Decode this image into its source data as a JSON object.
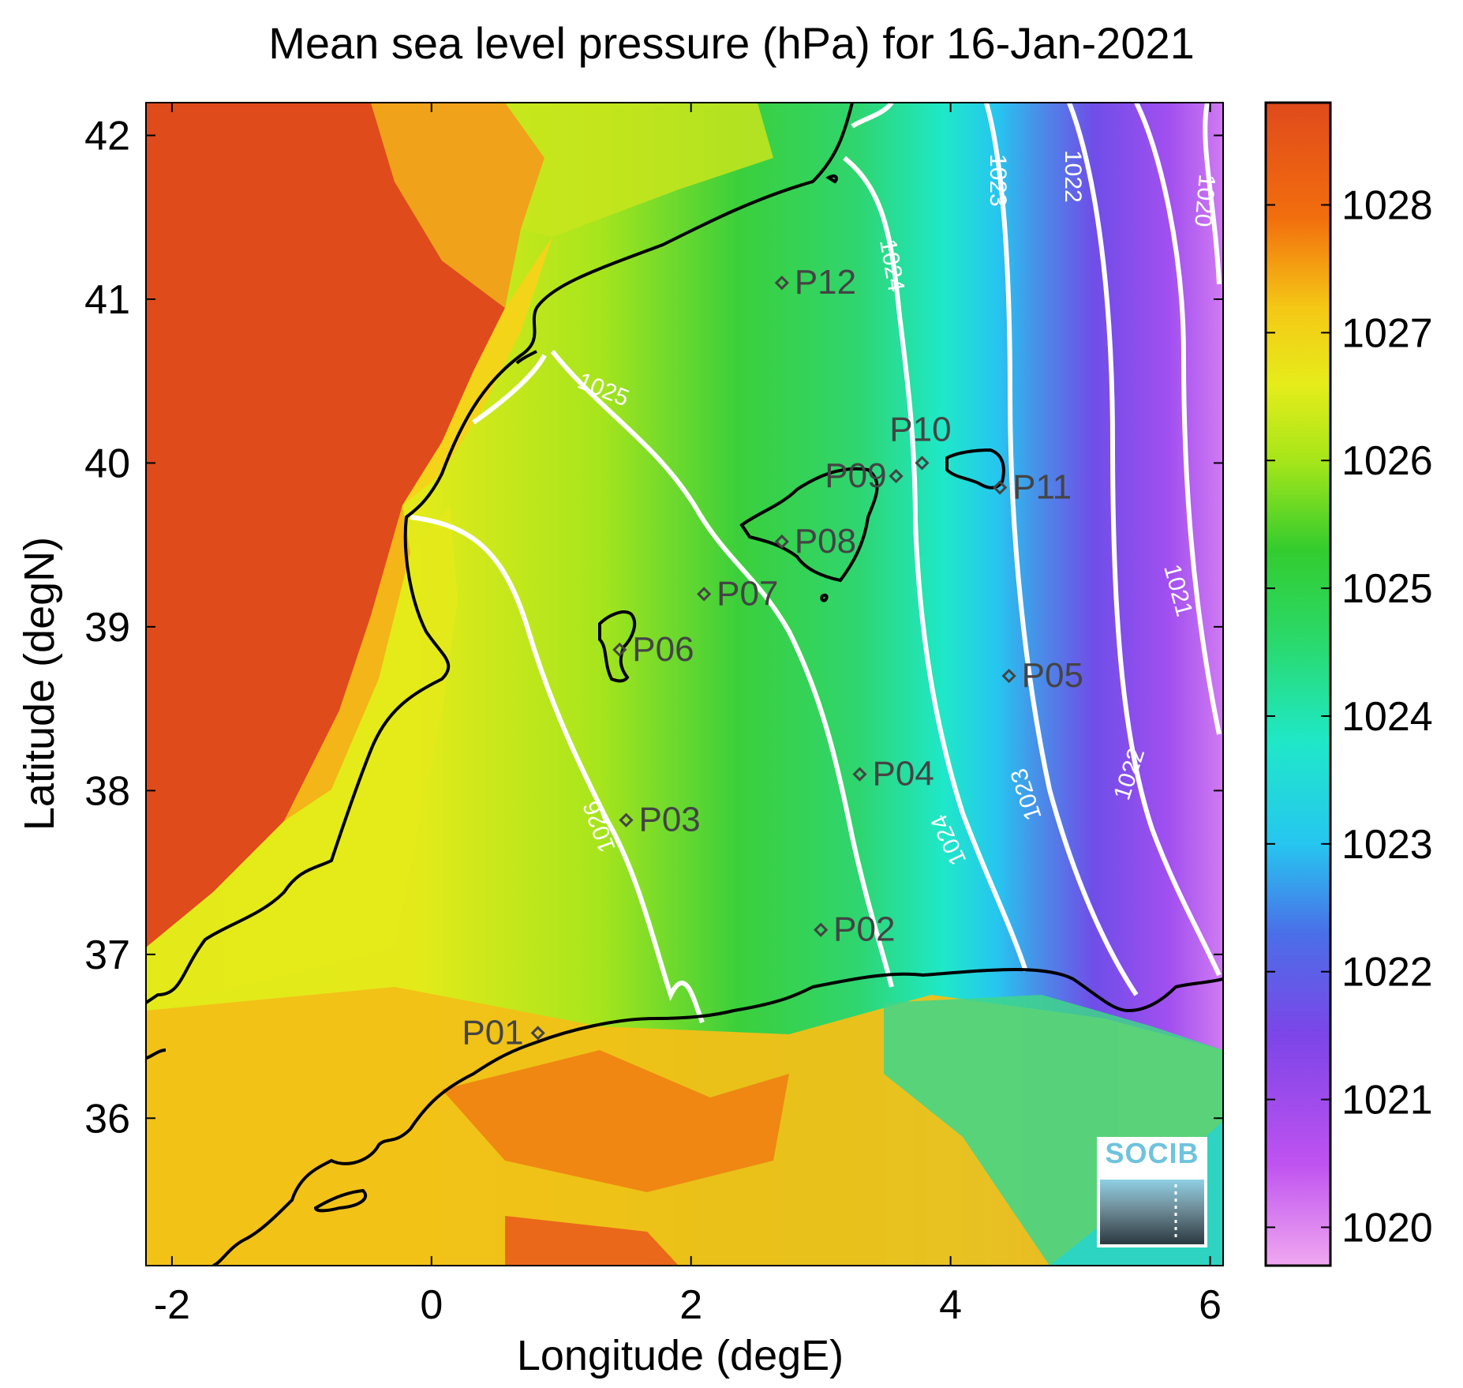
{
  "title": "Mean sea level pressure (hPa) for 16-Jan-2021",
  "chart_data": {
    "type": "heatmap",
    "title": "Mean sea level pressure (hPa) for 16-Jan-2021",
    "xlabel": "Longitude (degE)",
    "ylabel": "Latitude (degN)",
    "xlim": [
      -2.2,
      6.1
    ],
    "ylim": [
      35.1,
      42.2
    ],
    "xticks": [
      -2,
      0,
      2,
      4,
      6
    ],
    "yticks": [
      36,
      37,
      38,
      39,
      40,
      41,
      42
    ],
    "colorbar": {
      "label": "",
      "range": [
        1019.7,
        1028.8
      ],
      "ticks": [
        1020,
        1021,
        1022,
        1023,
        1024,
        1025,
        1026,
        1027,
        1028
      ],
      "stops": [
        {
          "value": 1019.7,
          "color": "#f0a8f0"
        },
        {
          "value": 1020.5,
          "color": "#bf52f0"
        },
        {
          "value": 1021.5,
          "color": "#7d45e8"
        },
        {
          "value": 1022.3,
          "color": "#4a6fe8"
        },
        {
          "value": 1023.0,
          "color": "#26c6f0"
        },
        {
          "value": 1023.8,
          "color": "#1fe8c8"
        },
        {
          "value": 1024.6,
          "color": "#2ad96a"
        },
        {
          "value": 1025.3,
          "color": "#33cc2e"
        },
        {
          "value": 1026.0,
          "color": "#a6e619"
        },
        {
          "value": 1026.6,
          "color": "#e6ec1a"
        },
        {
          "value": 1027.2,
          "color": "#f5c715"
        },
        {
          "value": 1027.9,
          "color": "#f26e0d"
        },
        {
          "value": 1028.8,
          "color": "#e04a1c"
        }
      ]
    },
    "contour_labels": [
      "1020",
      "1021",
      "1022",
      "1022",
      "1023",
      "1023",
      "1024",
      "1024",
      "1025",
      "1026"
    ],
    "stations": [
      {
        "name": "P01",
        "lon": 0.82,
        "lat": 36.52
      },
      {
        "name": "P02",
        "lon": 3.0,
        "lat": 37.15
      },
      {
        "name": "P03",
        "lon": 1.5,
        "lat": 37.82
      },
      {
        "name": "P04",
        "lon": 3.3,
        "lat": 38.1
      },
      {
        "name": "P05",
        "lon": 4.45,
        "lat": 38.7
      },
      {
        "name": "P06",
        "lon": 1.45,
        "lat": 38.86
      },
      {
        "name": "P07",
        "lon": 2.1,
        "lat": 39.2
      },
      {
        "name": "P08",
        "lon": 2.7,
        "lat": 39.52
      },
      {
        "name": "P09",
        "lon": 3.58,
        "lat": 39.92
      },
      {
        "name": "P10",
        "lon": 3.78,
        "lat": 40.0
      },
      {
        "name": "P11",
        "lon": 4.38,
        "lat": 39.85
      },
      {
        "name": "P12",
        "lon": 2.7,
        "lat": 41.1
      }
    ]
  },
  "logo": {
    "text": "SOCIB"
  },
  "colors": {
    "contour": "#ffffff",
    "coast": "#000000",
    "station": "#444444"
  }
}
